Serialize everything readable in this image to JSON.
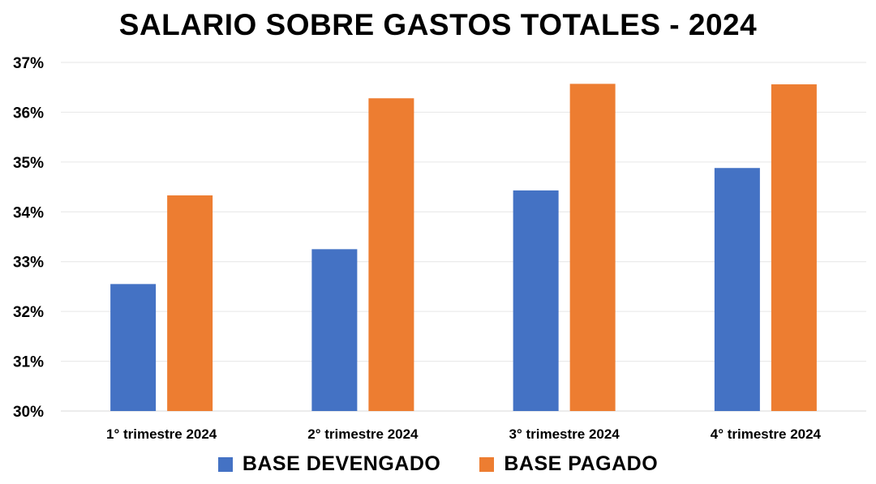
{
  "chart_data": {
    "type": "bar",
    "title": "SALARIO SOBRE GASTOS TOTALES - 2024",
    "categories": [
      "1° trimestre 2024",
      "2° trimestre 2024",
      "3° trimestre 2024",
      "4° trimestre 2024"
    ],
    "series": [
      {
        "name": "BASE DEVENGADO",
        "color": "#4472C4",
        "values": [
          32.55,
          33.25,
          34.43,
          34.88
        ]
      },
      {
        "name": "BASE PAGADO",
        "color": "#ED7D31",
        "values": [
          34.33,
          36.28,
          36.57,
          36.56
        ]
      }
    ],
    "yticks": [
      "30%",
      "31%",
      "32%",
      "33%",
      "34%",
      "35%",
      "36%",
      "37%"
    ],
    "ylim": [
      30,
      37
    ],
    "grid": true,
    "legend_position": "bottom"
  }
}
